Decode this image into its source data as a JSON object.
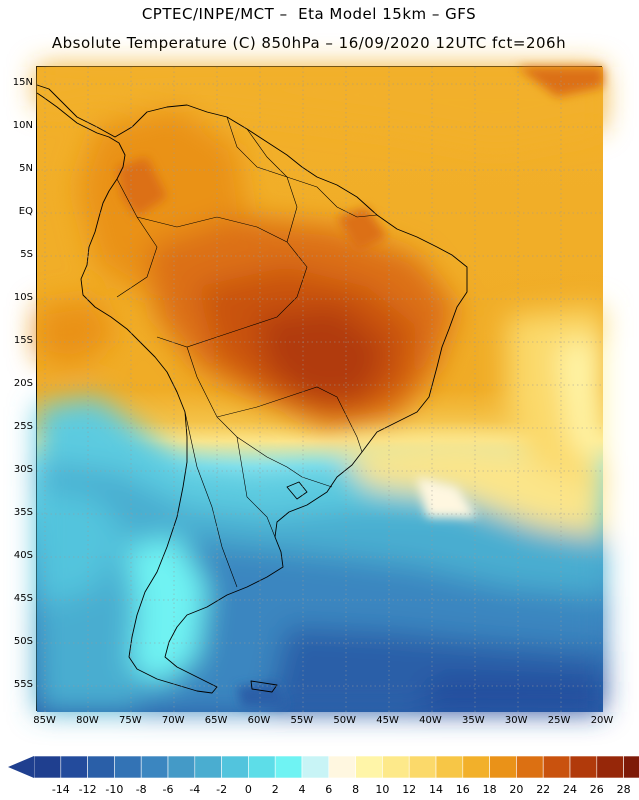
{
  "header": {
    "line1": "CPTEC/INPE/MCT –  Eta Model 15km – GFS",
    "line2": "Absolute Temperature (C) 850hPa – 16/09/2020 12UTC fct=206h"
  },
  "map": {
    "region": "South America",
    "lon_range": [
      -86,
      -20
    ],
    "lat_range": [
      -58,
      17
    ],
    "lat_ticks": [
      {
        "value": 15,
        "label": "15N"
      },
      {
        "value": 10,
        "label": "10N"
      },
      {
        "value": 5,
        "label": "5N"
      },
      {
        "value": 0,
        "label": "EQ"
      },
      {
        "value": -5,
        "label": "5S"
      },
      {
        "value": -10,
        "label": "10S"
      },
      {
        "value": -15,
        "label": "15S"
      },
      {
        "value": -20,
        "label": "20S"
      },
      {
        "value": -25,
        "label": "25S"
      },
      {
        "value": -30,
        "label": "30S"
      },
      {
        "value": -35,
        "label": "35S"
      },
      {
        "value": -40,
        "label": "40S"
      },
      {
        "value": -45,
        "label": "45S"
      },
      {
        "value": -50,
        "label": "50S"
      },
      {
        "value": -55,
        "label": "55S"
      }
    ],
    "lon_ticks": [
      {
        "value": -85,
        "label": "85W"
      },
      {
        "value": -80,
        "label": "80W"
      },
      {
        "value": -75,
        "label": "75W"
      },
      {
        "value": -70,
        "label": "70W"
      },
      {
        "value": -65,
        "label": "65W"
      },
      {
        "value": -60,
        "label": "60W"
      },
      {
        "value": -55,
        "label": "55W"
      },
      {
        "value": -50,
        "label": "50W"
      },
      {
        "value": -45,
        "label": "45W"
      },
      {
        "value": -40,
        "label": "40W"
      },
      {
        "value": -35,
        "label": "35W"
      },
      {
        "value": -30,
        "label": "30W"
      },
      {
        "value": -25,
        "label": "25W"
      },
      {
        "value": -20,
        "label": "20W"
      }
    ]
  },
  "colorbar": {
    "labels": [
      "-14",
      "-12",
      "-10",
      "-8",
      "-6",
      "-4",
      "-2",
      "0",
      "2",
      "4",
      "6",
      "8",
      "10",
      "12",
      "14",
      "16",
      "18",
      "20",
      "22",
      "24",
      "26",
      "28"
    ],
    "colors": [
      "#1f3f8f",
      "#234b9c",
      "#2a5fa8",
      "#3373b5",
      "#3b86c0",
      "#449ac7",
      "#4aadd0",
      "#52c4dd",
      "#5ddde8",
      "#6ff3f3",
      "#c8f4f6",
      "#fff7e0",
      "#fff5a8",
      "#fde98a",
      "#fbd96a",
      "#f7c646",
      "#f2b02a",
      "#ea9218",
      "#dc7012",
      "#c9520e",
      "#b13a0b",
      "#962709",
      "#7e1a08"
    ],
    "low_color": "#1f3f8f",
    "high_color": "#7e1a08"
  }
}
